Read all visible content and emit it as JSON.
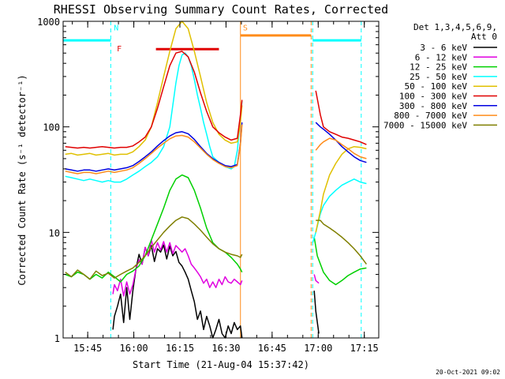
{
  "chart_data": {
    "type": "line",
    "title": "RHESSI Observing Summary Count Rates, Corrected",
    "xlabel": "Start Time (21-Aug-04 15:37:42)",
    "ylabel": "Corrected Count Rate (s⁻¹ detector⁻¹)",
    "y_scale": "log",
    "ylim": [
      1,
      1000
    ],
    "xlim_minutes": [
      -0.7,
      102
    ],
    "x_ticks": [
      {
        "label": "15:45",
        "minutes": 7.3
      },
      {
        "label": "16:00",
        "minutes": 22.3
      },
      {
        "label": "16:15",
        "minutes": 37.3
      },
      {
        "label": "16:30",
        "minutes": 52.3
      },
      {
        "label": "16:45",
        "minutes": 67.3
      },
      {
        "label": "17:00",
        "minutes": 82.3
      },
      {
        "label": "17:15",
        "minutes": 97.3
      }
    ],
    "y_ticks": [
      {
        "label": "1",
        "value": 1
      },
      {
        "label": "10",
        "value": 10
      },
      {
        "label": "100",
        "value": 100
      },
      {
        "label": "1000",
        "value": 1000
      }
    ],
    "legend_header": [
      "Det 1,3,4,5,6,9,",
      "Att 0"
    ],
    "legend_position": "right",
    "series": [
      {
        "name": "3 - 6 keV",
        "color": "#000000",
        "x": [
          15.5,
          16,
          17,
          18,
          19,
          20,
          21,
          22,
          23,
          24,
          25,
          26,
          27,
          28,
          29,
          30,
          31,
          32,
          33,
          34,
          35,
          36,
          37,
          38,
          39,
          40,
          41,
          42,
          43,
          44,
          45,
          46,
          47,
          48,
          49,
          50,
          51,
          52,
          53,
          54,
          55,
          56,
          57,
          57.5,
          81,
          81.5,
          82.5
        ],
        "values": [
          1.2,
          1.6,
          2,
          2.6,
          1.4,
          3,
          1.5,
          2.8,
          4.5,
          6.2,
          5,
          7.2,
          6,
          7.5,
          5.3,
          7,
          6.5,
          7.6,
          5.6,
          7.4,
          6,
          6.6,
          5.2,
          4.8,
          4.2,
          3.6,
          2.8,
          2.2,
          1.5,
          1.8,
          1.2,
          1.6,
          1.3,
          1,
          1.2,
          1.5,
          1.1,
          1,
          1.3,
          1.1,
          1.4,
          1.2,
          1.3,
          1,
          2.8,
          1.8,
          1.1
        ]
      },
      {
        "name": "6 - 12 keV",
        "color": "#e000e0",
        "x": [
          15.5,
          16,
          17,
          18,
          19,
          20,
          21,
          22,
          23,
          24,
          25,
          26,
          27,
          28,
          29,
          30,
          31,
          32,
          33,
          34,
          35,
          36,
          37,
          38,
          39,
          40,
          41,
          42,
          43,
          44,
          45,
          46,
          47,
          48,
          49,
          50,
          51,
          52,
          53,
          54,
          55,
          56,
          57,
          57.5,
          81,
          81.5,
          82.5
        ],
        "values": [
          2.6,
          3.2,
          2.8,
          3.6,
          2.5,
          3.4,
          2.6,
          3.2,
          4.5,
          5.5,
          5,
          7.2,
          6,
          8.5,
          6.5,
          8,
          6.8,
          8.2,
          6.5,
          8,
          6.3,
          7.5,
          7,
          6.5,
          7,
          6,
          5,
          4.6,
          4.2,
          3.8,
          3.3,
          3.6,
          3,
          3.4,
          3,
          3.6,
          3.2,
          3.8,
          3.4,
          3.3,
          3.6,
          3.4,
          3.2,
          3.5,
          4,
          3.5,
          3.3
        ]
      },
      {
        "name": "12 - 25 keV",
        "color": "#00d000",
        "x": [
          0,
          2,
          4,
          6,
          8,
          10,
          12,
          14,
          16,
          18,
          20,
          22,
          24,
          26,
          28,
          30,
          32,
          34,
          36,
          38,
          40,
          42,
          44,
          46,
          48,
          50,
          52,
          54,
          56,
          57,
          57.5,
          81,
          82,
          84,
          86,
          88,
          90,
          92,
          94,
          96,
          98
        ],
        "values": [
          4,
          3.8,
          4.2,
          4,
          3.6,
          4,
          3.7,
          4.2,
          3.8,
          3.4,
          4,
          4.3,
          4.8,
          6,
          8.5,
          12,
          17,
          25,
          32,
          35,
          33,
          25,
          17,
          11,
          8,
          7,
          6.5,
          5.8,
          5,
          4.5,
          4.2,
          9,
          6,
          4.2,
          3.5,
          3.2,
          3.5,
          3.9,
          4.2,
          4.5,
          4.6
        ]
      },
      {
        "name": "25 - 50 keV",
        "color": "#00ffff",
        "x": [
          0,
          2,
          4,
          6,
          8,
          10,
          12,
          14,
          16,
          18,
          20,
          22,
          24,
          26,
          28,
          30,
          32,
          34,
          35,
          36,
          37,
          38,
          39,
          40,
          41,
          42,
          43,
          44,
          45,
          46,
          47,
          48,
          50,
          52,
          54,
          55,
          56,
          57,
          57.5,
          80.5,
          81.5,
          83,
          84,
          86,
          88,
          90,
          92,
          94,
          96,
          98
        ],
        "values": [
          34,
          33,
          32,
          31,
          32,
          31,
          30,
          31,
          30,
          30,
          32,
          35,
          38,
          42,
          46,
          52,
          65,
          100,
          160,
          260,
          380,
          480,
          500,
          460,
          380,
          280,
          200,
          150,
          110,
          85,
          65,
          52,
          46,
          42,
          40,
          42,
          60,
          120,
          175,
          8,
          10,
          15,
          18,
          22,
          25,
          28,
          30,
          32,
          30,
          29
        ]
      },
      {
        "name": "50 - 100 keV",
        "color": "#e0c000",
        "x": [
          0,
          2,
          4,
          6,
          8,
          10,
          12,
          14,
          16,
          18,
          20,
          22,
          24,
          26,
          28,
          30,
          32,
          34,
          36,
          38,
          40,
          42,
          44,
          46,
          48,
          50,
          52,
          54,
          56,
          57,
          57.5,
          81.5,
          83,
          84,
          86,
          88,
          90,
          92,
          94,
          96,
          98
        ],
        "values": [
          55,
          56,
          54,
          55,
          56,
          54,
          55,
          56,
          54,
          55,
          55,
          58,
          65,
          75,
          100,
          170,
          300,
          520,
          850,
          1000,
          850,
          520,
          300,
          170,
          110,
          85,
          75,
          70,
          72,
          110,
          160,
          10,
          16,
          23,
          35,
          45,
          55,
          62,
          65,
          64,
          62
        ]
      },
      {
        "name": "100 - 300 keV",
        "color": "#e00000",
        "x": [
          0,
          2,
          4,
          6,
          8,
          10,
          12,
          14,
          16,
          18,
          20,
          22,
          24,
          26,
          28,
          30,
          32,
          34,
          36,
          38,
          40,
          42,
          44,
          46,
          48,
          50,
          52,
          54,
          56,
          57,
          57.5,
          81.5,
          83,
          84,
          86,
          88,
          90,
          92,
          94,
          96,
          98
        ],
        "values": [
          65,
          64,
          63,
          64,
          63,
          64,
          65,
          64,
          63,
          64,
          64,
          66,
          72,
          80,
          100,
          150,
          240,
          380,
          500,
          520,
          460,
          330,
          210,
          140,
          100,
          88,
          80,
          75,
          78,
          130,
          180,
          220,
          130,
          100,
          90,
          85,
          80,
          78,
          75,
          72,
          68
        ]
      },
      {
        "name": "300 - 800 keV",
        "color": "#0000e0",
        "x": [
          0,
          2,
          4,
          6,
          8,
          10,
          12,
          14,
          16,
          18,
          20,
          22,
          24,
          26,
          28,
          30,
          32,
          34,
          36,
          38,
          40,
          42,
          44,
          46,
          48,
          50,
          52,
          54,
          56,
          57,
          57.5,
          81.5,
          83,
          84,
          86,
          88,
          90,
          92,
          94,
          96,
          98
        ],
        "values": [
          40,
          39,
          38,
          39,
          39,
          38,
          39,
          40,
          39,
          40,
          41,
          43,
          47,
          52,
          58,
          66,
          74,
          82,
          88,
          90,
          86,
          76,
          65,
          56,
          50,
          46,
          43,
          42,
          44,
          70,
          110,
          110,
          100,
          95,
          85,
          75,
          65,
          58,
          52,
          48,
          46
        ]
      },
      {
        "name": "800 - 7000 keV",
        "color": "#ff8c1a",
        "x": [
          0,
          2,
          4,
          6,
          8,
          10,
          12,
          14,
          16,
          18,
          20,
          22,
          24,
          26,
          28,
          30,
          32,
          34,
          36,
          38,
          40,
          42,
          44,
          46,
          48,
          50,
          52,
          54,
          56,
          57,
          57.5,
          81.5,
          83,
          84,
          86,
          88,
          90,
          92,
          94,
          96,
          98
        ],
        "values": [
          38,
          37,
          36,
          37,
          37,
          36,
          37,
          38,
          37,
          38,
          39,
          41,
          45,
          50,
          56,
          63,
          70,
          77,
          82,
          83,
          80,
          72,
          63,
          55,
          49,
          45,
          42,
          41,
          43,
          68,
          105,
          60,
          68,
          72,
          78,
          75,
          68,
          62,
          56,
          52,
          50
        ]
      },
      {
        "name": "7000 - 15000 keV",
        "color": "#7f7f00",
        "x": [
          0,
          2,
          4,
          6,
          8,
          10,
          12,
          14,
          16,
          18,
          20,
          22,
          24,
          26,
          28,
          30,
          32,
          34,
          36,
          38,
          40,
          42,
          44,
          46,
          48,
          50,
          52,
          54,
          56,
          57,
          57.5,
          81.5,
          83,
          84,
          86,
          88,
          90,
          92,
          94,
          96,
          98
        ],
        "values": [
          4.2,
          3.8,
          4.4,
          4,
          3.6,
          4.3,
          3.9,
          4.1,
          3.7,
          4,
          4.3,
          4.6,
          5.2,
          6,
          7.2,
          8.5,
          10,
          11.5,
          13,
          14,
          13.5,
          12,
          10.5,
          9,
          7.8,
          7,
          6.5,
          6.2,
          6,
          5.8,
          6.2,
          13,
          13,
          12,
          11,
          10,
          9,
          8,
          7,
          6,
          5
        ]
      }
    ],
    "annotations": [
      {
        "label": "N",
        "color": "#00ffff",
        "position": "top"
      },
      {
        "label": "F",
        "color": "#e00000",
        "position": "top"
      },
      {
        "label": "S",
        "color": "#ff8c1a",
        "position": "top"
      }
    ],
    "flag_bars": [
      {
        "label": "N",
        "color": "#00ffff",
        "x_start": -0.7,
        "x_end": 14.8,
        "y_value": 660
      },
      {
        "label": "N",
        "color": "#00ffff",
        "x_start": 80.5,
        "x_end": 96.3,
        "y_value": 660
      },
      {
        "label": "F",
        "color": "#e00000",
        "x_start": 29.5,
        "x_end": 50,
        "y_value": 545
      },
      {
        "label": "S",
        "color": "#ff8c1a",
        "x_start": 57,
        "x_end": 80,
        "y_value": 735
      }
    ],
    "night_boundaries_minutes": [
      -0.7,
      14.8,
      80.5,
      96.3
    ],
    "saa_boundaries_minutes": [
      57,
      80
    ]
  },
  "footer_date": "20-Oct-2021 09:02"
}
